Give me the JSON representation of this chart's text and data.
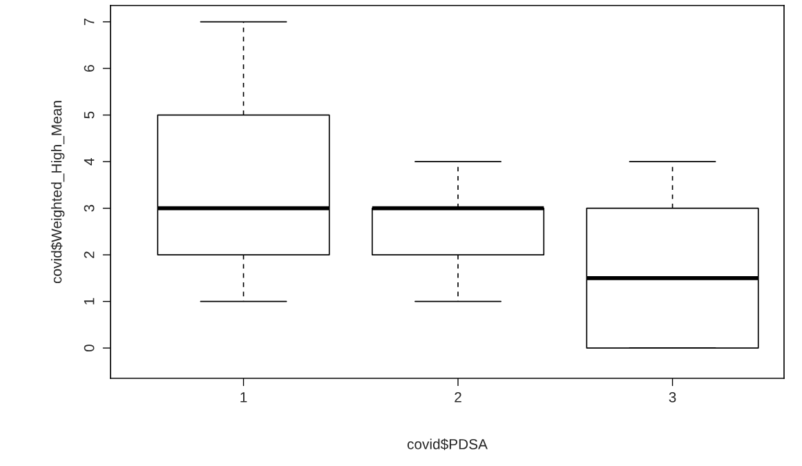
{
  "chart_data": {
    "type": "box",
    "xlabel": "covid$PDSA",
    "ylabel": "covid$Weighted_High_Mean",
    "categories": [
      "1",
      "2",
      "3"
    ],
    "boxes": [
      {
        "low": 1,
        "q1": 2,
        "median": 3,
        "q3": 5,
        "high": 7
      },
      {
        "low": 1,
        "q1": 2,
        "median": 3,
        "q3": 3,
        "high": 4
      },
      {
        "low": 0,
        "q1": 0,
        "median": 1.5,
        "q3": 3,
        "high": 4
      }
    ],
    "ylim": [
      -0.65,
      7.35
    ],
    "yticks": [
      0,
      1,
      2,
      3,
      4,
      5,
      6,
      7
    ],
    "grid": false
  }
}
